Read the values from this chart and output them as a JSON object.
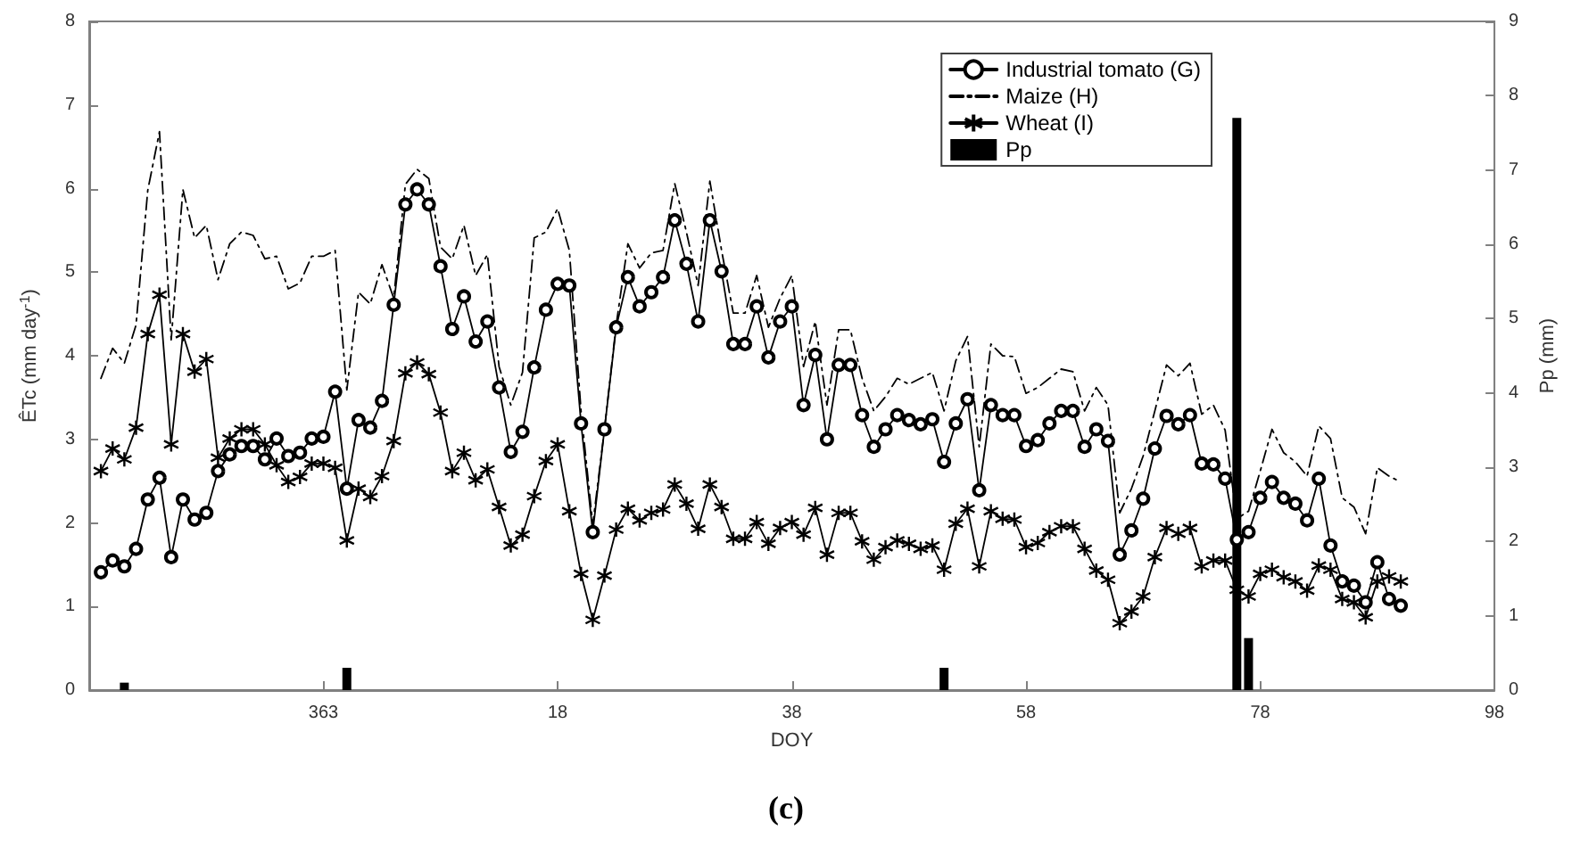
{
  "chart_data": {
    "type": "line",
    "title": "(c)",
    "xlabel": "DOY",
    "ylabel": "ÊTc (mm day$^{-1}$)",
    "y2label": "Pp (mm)",
    "categories": [
      null,
      null,
      null,
      null,
      null,
      null,
      null,
      null,
      null,
      null,
      null,
      null,
      null,
      null,
      null,
      null,
      null,
      null,
      null,
      null,
      "363",
      null,
      null,
      null,
      null,
      null,
      null,
      null,
      null,
      null,
      null,
      null,
      null,
      null,
      null,
      null,
      null,
      null,
      null,
      null,
      "18",
      null,
      null,
      null,
      null,
      null,
      null,
      null,
      null,
      null,
      null,
      null,
      null,
      null,
      null,
      null,
      null,
      null,
      null,
      null,
      "38",
      null,
      null,
      null,
      null,
      null,
      null,
      null,
      null,
      null,
      null,
      null,
      null,
      null,
      null,
      null,
      null,
      null,
      null,
      null,
      "58",
      null,
      null,
      null,
      null,
      null,
      null,
      null,
      null,
      null,
      null,
      null,
      null,
      null,
      null,
      null,
      null,
      null,
      null,
      null,
      "78",
      null,
      null,
      null,
      null,
      null,
      null,
      null,
      null,
      null,
      null,
      null,
      null,
      null,
      null,
      null,
      null,
      null,
      null,
      null,
      "98"
    ],
    "series": [
      {
        "name": "Industrial tomato (G)",
        "color": "#000000",
        "marker": "circle",
        "line_style": "solid",
        "values": [
          null,
          1.41,
          1.55,
          1.48,
          1.69,
          2.28,
          2.54,
          1.59,
          2.28,
          2.04,
          2.12,
          2.62,
          2.82,
          2.92,
          2.92,
          2.76,
          3.01,
          2.8,
          2.84,
          3.01,
          3.03,
          3.57,
          2.41,
          3.23,
          3.14,
          3.46,
          4.61,
          5.81,
          5.99,
          5.81,
          5.07,
          4.32,
          4.71,
          4.17,
          4.41,
          3.62,
          2.85,
          3.09,
          3.86,
          4.55,
          4.86,
          4.84,
          3.19,
          1.89,
          3.12,
          4.34,
          4.94,
          4.59,
          4.76,
          4.94,
          5.62,
          5.1,
          4.41,
          5.62,
          5.01,
          4.14,
          4.14,
          4.59,
          3.98,
          4.41,
          4.59,
          3.41,
          4.01,
          3.0,
          3.89,
          3.89,
          3.29,
          2.91,
          3.12,
          3.29,
          3.23,
          3.18,
          3.24,
          2.73,
          3.19,
          3.48,
          2.39,
          3.41,
          3.29,
          3.29,
          2.92,
          2.99,
          3.19,
          3.34,
          3.34,
          2.91,
          3.12,
          2.98,
          1.62,
          1.91,
          2.29,
          2.89,
          3.28,
          3.18,
          3.29,
          2.71,
          2.7,
          2.53,
          1.8,
          1.89,
          2.3,
          2.49,
          2.3,
          2.23,
          2.03,
          2.53,
          1.73,
          1.3,
          1.25,
          1.05,
          1.53,
          1.09,
          1.01,
          null,
          null,
          null,
          null,
          null,
          null,
          null,
          null
        ]
      },
      {
        "name": "Maize (H)",
        "color": "#000000",
        "marker": "none",
        "line_style": "dashed",
        "values": [
          null,
          3.73,
          4.09,
          3.91,
          4.37,
          5.98,
          6.68,
          4.19,
          5.99,
          5.41,
          5.56,
          4.91,
          5.34,
          5.48,
          5.44,
          5.16,
          5.19,
          4.8,
          4.87,
          5.19,
          5.19,
          5.26,
          3.59,
          4.76,
          4.62,
          5.09,
          4.69,
          6.05,
          6.23,
          6.12,
          5.3,
          5.16,
          5.56,
          4.96,
          5.21,
          3.87,
          3.41,
          3.8,
          5.41,
          5.48,
          5.76,
          5.26,
          3.34,
          1.98,
          3.12,
          4.37,
          5.34,
          5.05,
          5.23,
          5.26,
          6.06,
          5.48,
          4.84,
          6.09,
          5.26,
          4.51,
          4.51,
          4.96,
          4.34,
          4.69,
          4.96,
          3.87,
          4.41,
          3.41,
          4.31,
          4.31,
          3.73,
          3.34,
          3.51,
          3.73,
          3.66,
          3.73,
          3.8,
          3.34,
          3.94,
          4.23,
          2.91,
          4.14,
          4.0,
          3.99,
          3.55,
          3.62,
          3.73,
          3.84,
          3.81,
          3.34,
          3.62,
          3.41,
          2.12,
          2.41,
          2.8,
          3.34,
          3.89,
          3.76,
          3.91,
          3.3,
          3.41,
          3.11,
          2.05,
          2.14,
          2.62,
          3.12,
          2.84,
          2.73,
          2.56,
          3.16,
          3.01,
          2.3,
          2.19,
          1.87,
          2.66,
          2.56,
          2.49,
          null,
          null,
          null,
          null,
          null,
          null,
          null,
          null
        ]
      },
      {
        "name": "Wheat (I)",
        "color": "#000000",
        "marker": "cross",
        "line_style": "solid",
        "values": [
          null,
          2.62,
          2.89,
          2.76,
          3.14,
          4.26,
          4.73,
          2.94,
          4.26,
          3.81,
          3.96,
          2.78,
          3.01,
          3.12,
          3.12,
          2.94,
          2.69,
          2.49,
          2.55,
          2.71,
          2.71,
          2.66,
          1.79,
          2.41,
          2.31,
          2.56,
          2.98,
          3.79,
          3.92,
          3.78,
          3.32,
          2.62,
          2.84,
          2.51,
          2.64,
          2.19,
          1.73,
          1.86,
          2.32,
          2.74,
          2.94,
          2.14,
          1.39,
          0.84,
          1.37,
          1.92,
          2.17,
          2.03,
          2.12,
          2.16,
          2.46,
          2.23,
          1.93,
          2.46,
          2.19,
          1.81,
          1.81,
          2.01,
          1.75,
          1.94,
          2.01,
          1.86,
          2.18,
          1.62,
          2.12,
          2.12,
          1.78,
          1.56,
          1.71,
          1.79,
          1.75,
          1.69,
          1.73,
          1.44,
          1.99,
          2.17,
          1.48,
          2.14,
          2.05,
          2.04,
          1.71,
          1.76,
          1.89,
          1.96,
          1.96,
          1.69,
          1.43,
          1.32,
          0.8,
          0.94,
          1.12,
          1.59,
          1.94,
          1.87,
          1.94,
          1.48,
          1.55,
          1.55,
          1.2,
          1.12,
          1.39,
          1.44,
          1.35,
          1.3,
          1.19,
          1.49,
          1.44,
          1.09,
          1.05,
          0.87,
          1.3,
          1.36,
          1.3,
          null,
          null,
          null,
          null,
          null,
          null,
          null,
          null
        ]
      },
      {
        "name": "Pp",
        "type": "bar",
        "axis": "y2",
        "color": "#000000",
        "values": [
          null,
          null,
          null,
          0.1,
          null,
          null,
          null,
          null,
          null,
          null,
          null,
          null,
          null,
          null,
          null,
          null,
          null,
          null,
          null,
          null,
          null,
          null,
          0.3,
          null,
          null,
          null,
          null,
          null,
          null,
          null,
          null,
          null,
          null,
          null,
          null,
          null,
          null,
          null,
          null,
          null,
          null,
          null,
          null,
          null,
          null,
          null,
          null,
          null,
          null,
          null,
          null,
          null,
          null,
          null,
          null,
          null,
          null,
          null,
          null,
          null,
          null,
          null,
          null,
          null,
          null,
          null,
          null,
          null,
          null,
          null,
          null,
          null,
          null,
          0.3,
          null,
          null,
          null,
          null,
          null,
          null,
          null,
          null,
          null,
          null,
          null,
          null,
          null,
          null,
          null,
          null,
          null,
          null,
          null,
          null,
          null,
          null,
          null,
          null,
          7.7,
          0.7,
          null,
          null,
          null,
          null,
          null,
          null,
          null,
          null,
          null,
          null,
          null,
          null,
          null,
          null,
          null,
          null,
          null,
          null,
          null,
          null,
          null
        ]
      }
    ],
    "ylim": [
      0,
      8
    ],
    "yticks": [
      0,
      1,
      2,
      3,
      4,
      5,
      6,
      7,
      8
    ],
    "y2lim": [
      0,
      9
    ],
    "y2ticks": [
      0,
      1,
      2,
      3,
      4,
      5,
      6,
      7,
      8,
      9
    ],
    "legend": "top right"
  }
}
